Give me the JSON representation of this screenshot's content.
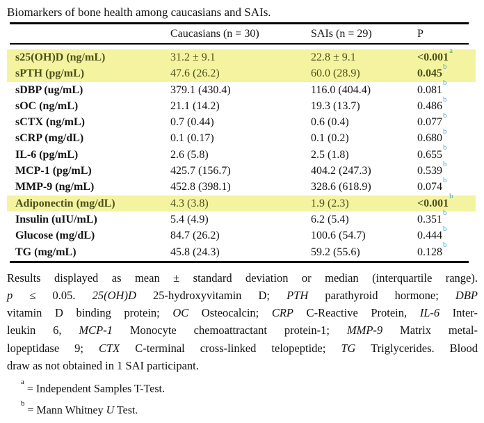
{
  "title": "Biomarkers of bone health among caucasians and SAIs.",
  "colors": {
    "highlight_bg": "#f4f4a0",
    "highlight_text": "#4c501e",
    "sup_a": "#41ae6e",
    "sup_b": "#4aa6cd"
  },
  "table": {
    "headers": {
      "biomarker": "",
      "caucasians": "Caucasians (n = 30)",
      "sais": "SAIs (n = 29)",
      "p": "P"
    },
    "rows": [
      {
        "label": "s25(OH)D (ng/mL)",
        "caucasians": "31.2 ± 9.1",
        "sais": "22.8 ± 9.1",
        "p": "<0.001",
        "sup": "a",
        "highlight": true,
        "p_bold": true
      },
      {
        "label": "sPTH (pg/mL)",
        "caucasians": "47.6 (26.2)",
        "sais": "60.0 (28.9)",
        "p": "0.045",
        "sup": "b",
        "highlight": true,
        "p_bold": true
      },
      {
        "label": "sDBP (ug/mL)",
        "caucasians": "379.1 (430.4)",
        "sais": "116.0 (404.4)",
        "p": "0.081",
        "sup": "b",
        "highlight": false,
        "p_bold": false
      },
      {
        "label": "sOC (ng/mL)",
        "caucasians": "21.1 (14.2)",
        "sais": "19.3 (13.7)",
        "p": "0.486",
        "sup": "b",
        "highlight": false,
        "p_bold": false
      },
      {
        "label": "sCTX (ng/mL)",
        "caucasians": "0.7 (0.44)",
        "sais": "0.6 (0.4)",
        "p": "0.077",
        "sup": "b",
        "highlight": false,
        "p_bold": false
      },
      {
        "label": "sCRP (mg/dL)",
        "caucasians": "0.1 (0.17)",
        "sais": "0.1 (0.2)",
        "p": "0.680",
        "sup": "b",
        "highlight": false,
        "p_bold": false
      },
      {
        "label": "IL-6 (pg/mL)",
        "caucasians": "2.6 (5.8)",
        "sais": "2.5 (1.8)",
        "p": "0.655",
        "sup": "b",
        "highlight": false,
        "p_bold": false
      },
      {
        "label": "MCP-1 (pg/mL)",
        "caucasians": "425.7 (156.7)",
        "sais": "404.2 (247.3)",
        "p": "0.539",
        "sup": "b",
        "highlight": false,
        "p_bold": false
      },
      {
        "label": "MMP-9 (ng/mL)",
        "caucasians": "452.8 (398.1)",
        "sais": "328.6 (618.9)",
        "p": "0.074",
        "sup": "b",
        "highlight": false,
        "p_bold": false
      },
      {
        "label": "Adiponectin (mg/dL)",
        "caucasians": "4.3 (3.8)",
        "sais": "1.9 (2.3)",
        "p": "<0.001",
        "sup": "b",
        "highlight": true,
        "p_bold": true
      },
      {
        "label": "Insulin (uIU/mL)",
        "caucasians": "5.4 (4.9)",
        "sais": "6.2 (5.4)",
        "p": "0.351",
        "sup": "b",
        "highlight": false,
        "p_bold": false
      },
      {
        "label": "Glucose (mg/dL)",
        "caucasians": "84.7 (26.2)",
        "sais": "100.6 (54.7)",
        "p": "0.444",
        "sup": "b",
        "highlight": false,
        "p_bold": false
      },
      {
        "label": "TG (mg/mL)",
        "caucasians": "45.8 (24.3)",
        "sais": "59.2 (55.6)",
        "p": "0.128",
        "sup": "b",
        "highlight": false,
        "p_bold": false
      }
    ]
  },
  "footnote": {
    "lines": [
      {
        "justify": true,
        "runs": [
          {
            "t": "Results displayed as mean ± standard deviation or median (interquartile range)."
          }
        ]
      },
      {
        "justify": true,
        "runs": [
          {
            "t": "p",
            "i": true
          },
          {
            "t": " ≤ 0.05. "
          },
          {
            "t": "25(OH)D",
            "i": true
          },
          {
            "t": " 25-hydroxyvitamin D; "
          },
          {
            "t": "PTH",
            "i": true
          },
          {
            "t": " parathyroid hormone; "
          },
          {
            "t": "DBP",
            "i": true
          }
        ]
      },
      {
        "justify": true,
        "runs": [
          {
            "t": "vitamin D binding protein; "
          },
          {
            "t": "OC",
            "i": true
          },
          {
            "t": " Osteocalcin; "
          },
          {
            "t": "CRP",
            "i": true
          },
          {
            "t": " C-Reactive Protein, "
          },
          {
            "t": "IL-6",
            "i": true
          },
          {
            "t": " Inter-"
          }
        ]
      },
      {
        "justify": true,
        "runs": [
          {
            "t": "leukin 6, "
          },
          {
            "t": "MCP-1",
            "i": true
          },
          {
            "t": " Monocyte chemoattractant protein-1; "
          },
          {
            "t": "MMP-9",
            "i": true
          },
          {
            "t": " Matrix metal-"
          }
        ]
      },
      {
        "justify": true,
        "runs": [
          {
            "t": "lopeptidase 9; "
          },
          {
            "t": "CTX",
            "i": true
          },
          {
            "t": " C-terminal cross-linked telopeptide; "
          },
          {
            "t": "TG",
            "i": true
          },
          {
            "t": " Triglycerides. Blood"
          }
        ]
      },
      {
        "justify": false,
        "runs": [
          {
            "t": "draw as not obtained in 1 SAI participant."
          }
        ]
      }
    ],
    "refs": [
      {
        "sup": "a",
        "runs": [
          {
            "t": "= Independent Samples T-Test."
          }
        ]
      },
      {
        "sup": "b",
        "runs": [
          {
            "t": "= Mann Whitney "
          },
          {
            "t": "U",
            "i": true
          },
          {
            "t": " Test."
          }
        ]
      }
    ]
  }
}
